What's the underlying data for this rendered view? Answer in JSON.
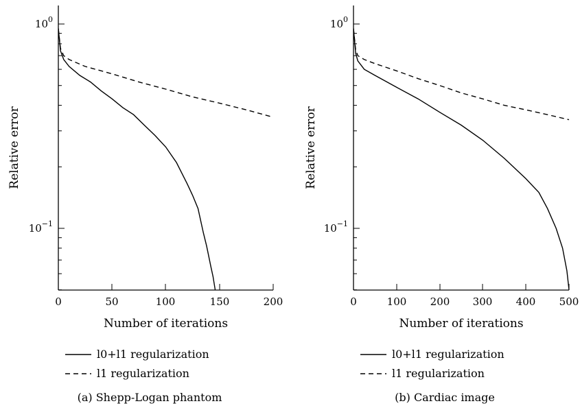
{
  "chart_data": [
    {
      "type": "line",
      "caption": "(a) Shepp-Logan phantom",
      "xlabel": "Number of iterations",
      "ylabel": "Relative error",
      "xlim": [
        0,
        200
      ],
      "ylim": [
        0.05,
        1.15
      ],
      "yscale": "log",
      "x_ticks": [
        "0",
        "50",
        "100",
        "150",
        "200"
      ],
      "y_ticks": [
        {
          "base": "10",
          "exp": "0"
        },
        {
          "base": "10",
          "exp": "−1"
        }
      ],
      "grid": false,
      "legend_position": "below",
      "series": [
        {
          "name": "l0+l1 regularization",
          "style": "solid",
          "x": [
            0,
            2,
            5,
            10,
            20,
            30,
            40,
            50,
            60,
            70,
            80,
            90,
            100,
            110,
            120,
            125,
            130,
            135,
            138,
            140,
            142,
            144,
            146
          ],
          "y": [
            0.95,
            0.74,
            0.67,
            0.62,
            0.56,
            0.52,
            0.47,
            0.43,
            0.39,
            0.36,
            0.32,
            0.285,
            0.25,
            0.21,
            0.165,
            0.145,
            0.125,
            0.095,
            0.082,
            0.073,
            0.065,
            0.058,
            0.05
          ]
        },
        {
          "name": "l1 regularization",
          "style": "dashed",
          "x": [
            0,
            2,
            5,
            10,
            25,
            50,
            75,
            100,
            125,
            150,
            175,
            200
          ],
          "y": [
            0.95,
            0.76,
            0.7,
            0.67,
            0.62,
            0.57,
            0.52,
            0.48,
            0.44,
            0.41,
            0.38,
            0.35
          ]
        }
      ]
    },
    {
      "type": "line",
      "caption": "(b) Cardiac image",
      "xlabel": "Number of iterations",
      "ylabel": "Relative error",
      "xlim": [
        0,
        500
      ],
      "ylim": [
        0.05,
        1.15
      ],
      "yscale": "log",
      "x_ticks": [
        "0",
        "100",
        "200",
        "300",
        "400",
        "500"
      ],
      "y_ticks": [
        {
          "base": "10",
          "exp": "0"
        },
        {
          "base": "10",
          "exp": "−1"
        }
      ],
      "grid": false,
      "legend_position": "below",
      "series": [
        {
          "name": "l0+l1 regularization",
          "style": "solid",
          "x": [
            0,
            5,
            10,
            25,
            50,
            100,
            150,
            200,
            250,
            300,
            350,
            400,
            430,
            450,
            470,
            485,
            495,
            500
          ],
          "y": [
            0.95,
            0.72,
            0.66,
            0.6,
            0.56,
            0.49,
            0.43,
            0.37,
            0.32,
            0.27,
            0.22,
            0.175,
            0.15,
            0.125,
            0.1,
            0.08,
            0.062,
            0.05
          ]
        },
        {
          "name": "l1 regularization",
          "style": "dashed",
          "x": [
            0,
            5,
            10,
            25,
            50,
            100,
            150,
            200,
            250,
            300,
            350,
            400,
            450,
            500
          ],
          "y": [
            0.95,
            0.75,
            0.7,
            0.67,
            0.64,
            0.59,
            0.54,
            0.5,
            0.46,
            0.43,
            0.4,
            0.38,
            0.36,
            0.34
          ]
        }
      ]
    }
  ]
}
